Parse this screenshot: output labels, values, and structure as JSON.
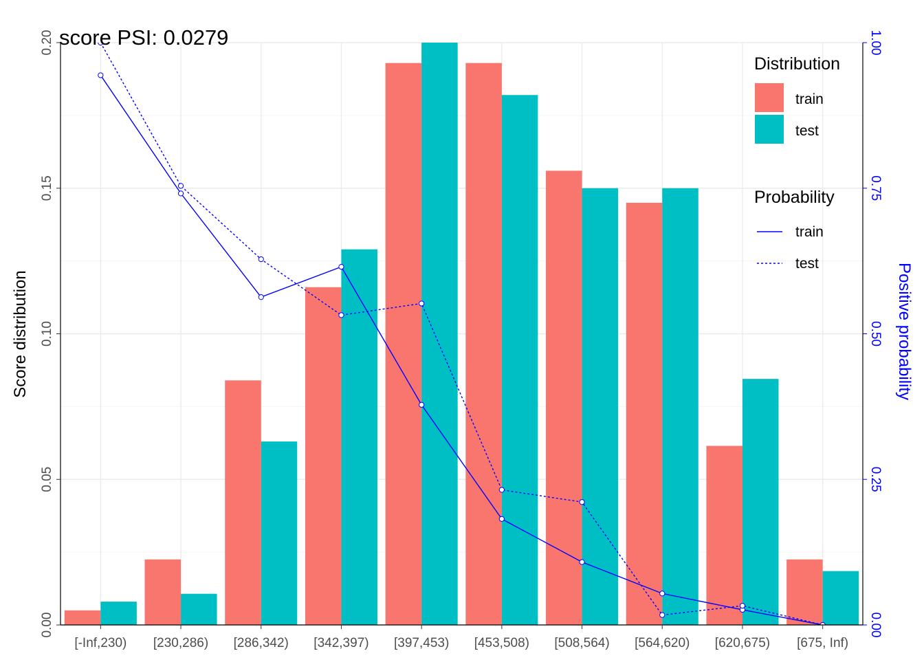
{
  "chart_data": {
    "type": "bar",
    "title": "score PSI: 0.0279",
    "xlabel": "",
    "ylabel": "Score distribution",
    "ylabel_right": "Positive probability",
    "categories": [
      "[-Inf,230)",
      "[230,286)",
      "[286,342)",
      "[342,397)",
      "[397,453)",
      "[453,508)",
      "[508,564)",
      "[564,620)",
      "[620,675)",
      "[675, Inf)"
    ],
    "ylim": [
      0,
      0.2
    ],
    "ylim_right": [
      0,
      1.0
    ],
    "yticks": [
      "0.00",
      "0.05",
      "0.10",
      "0.15",
      "0.20"
    ],
    "yticks_right": [
      "0.00",
      "0.25",
      "0.50",
      "0.75",
      "1.00"
    ],
    "series": [
      {
        "name": "train",
        "values": [
          0.005,
          0.0225,
          0.084,
          0.116,
          0.193,
          0.193,
          0.156,
          0.145,
          0.0615,
          0.0225
        ],
        "color": "#F8766D"
      },
      {
        "name": "test",
        "values": [
          0.008,
          0.0107,
          0.063,
          0.129,
          0.205,
          0.182,
          0.15,
          0.15,
          0.0845,
          0.0185
        ],
        "color": "#00BFC4"
      }
    ],
    "probability": [
      {
        "name": "train",
        "values": [
          0.944,
          0.741,
          0.563,
          0.615,
          0.378,
          0.182,
          0.108,
          0.054,
          0.026,
          0.0
        ],
        "color": "#0000ff",
        "dash": "solid"
      },
      {
        "name": "test",
        "values": [
          1.0,
          0.754,
          0.628,
          0.532,
          0.552,
          0.232,
          0.211,
          0.017,
          0.033,
          0.0
        ],
        "color": "#0000ff",
        "dash": "dotted"
      }
    ],
    "grid": true,
    "legend": {
      "placement": "top-right",
      "distribution_title": "Distribution",
      "probability_title": "Probability"
    }
  }
}
